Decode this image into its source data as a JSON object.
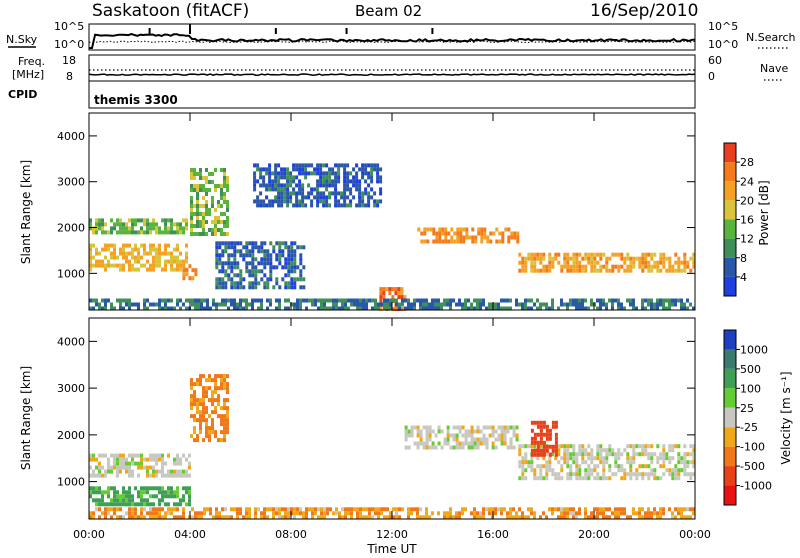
{
  "header": {
    "station": "Saskatoon (fitACF)",
    "beam": "Beam 02",
    "date": "16/Sep/2010"
  },
  "strip": {
    "nsky_label": "N.Sky",
    "nsearch_label": "N.Search",
    "left_ticks": [
      "10^5",
      "10^0"
    ],
    "right_ticks": [
      "10^5",
      "10^0"
    ],
    "freq_label": [
      "Freq.",
      "[MHz]"
    ],
    "freq_ticks": [
      "18",
      "8"
    ],
    "nave_label": "Nave",
    "nave_ticks": [
      "60",
      "0"
    ],
    "cpid_label": "CPID",
    "cpid_value": "themis 3300"
  },
  "axes": {
    "xlabel": "Time UT",
    "ylabel": "Slant Range [km]",
    "x_ticks": [
      "00:00",
      "04:00",
      "08:00",
      "12:00",
      "16:00",
      "20:00",
      "00:00"
    ],
    "y_ticks": [
      "1000",
      "2000",
      "3000",
      "4000"
    ]
  },
  "colorbars": {
    "power": {
      "label": "Power [dB]",
      "ticks": [
        "4",
        "8",
        "12",
        "16",
        "20",
        "24",
        "28"
      ],
      "colors": [
        "#1f3fe0",
        "#2a57a8",
        "#3f8f5a",
        "#58b43c",
        "#d9c43a",
        "#f5a123",
        "#f57a1c",
        "#e8401f"
      ]
    },
    "velocity": {
      "label": "Velocity [m s⁻¹]",
      "ticks": [
        "1000",
        "500",
        "100",
        "25",
        "-25",
        "-100",
        "-500",
        "-1000"
      ],
      "colors": [
        "#1e3fbf",
        "#3b7a6f",
        "#3fa055",
        "#66cc33",
        "#c8c8c0",
        "#f0a818",
        "#f07818",
        "#e84018",
        "#e81010"
      ]
    }
  },
  "chart_data": [
    {
      "type": "heatmap",
      "title": "Power",
      "x": "Time UT",
      "xlim": [
        "00:00",
        "24:00"
      ],
      "ylim": [
        200,
        4500
      ],
      "zlabel": "Power [dB]",
      "zlim": [
        0,
        32
      ],
      "regions": [
        {
          "t": [
            0.0,
            3.9
          ],
          "range": [
            1050,
            1650
          ],
          "power_db": 20
        },
        {
          "t": [
            0.0,
            3.9
          ],
          "range": [
            1900,
            2200
          ],
          "power_db": 14
        },
        {
          "t": [
            3.7,
            4.2
          ],
          "range": [
            900,
            1200
          ],
          "power_db": 24
        },
        {
          "t": [
            4.0,
            5.5
          ],
          "range": [
            1900,
            3300
          ],
          "power_db": 14
        },
        {
          "t": [
            5.0,
            8.5
          ],
          "range": [
            700,
            1700
          ],
          "power_db": 6
        },
        {
          "t": [
            6.5,
            11.5
          ],
          "range": [
            2500,
            3400
          ],
          "power_db": 6
        },
        {
          "t": [
            11.5,
            12.5
          ],
          "range": [
            200,
            700
          ],
          "power_db": 26
        },
        {
          "t": [
            13.0,
            17.0
          ],
          "range": [
            1700,
            2000
          ],
          "power_db": 24
        },
        {
          "t": [
            17.0,
            24.0
          ],
          "range": [
            1050,
            1450
          ],
          "power_db": 22
        },
        {
          "t": [
            0.0,
            24.0
          ],
          "range": [
            200,
            450
          ],
          "power_db": 8
        }
      ]
    },
    {
      "type": "heatmap",
      "title": "Velocity",
      "x": "Time UT",
      "xlim": [
        "00:00",
        "24:00"
      ],
      "ylim": [
        200,
        4500
      ],
      "zlabel": "Velocity [m s-1]",
      "zlim": [
        -1000,
        1000
      ],
      "regions": [
        {
          "t": [
            0.0,
            4.0
          ],
          "range": [
            1100,
            1600
          ],
          "velocity": 0
        },
        {
          "t": [
            0.0,
            4.0
          ],
          "range": [
            500,
            900
          ],
          "velocity": 80
        },
        {
          "t": [
            4.0,
            5.5
          ],
          "range": [
            1900,
            3300
          ],
          "velocity": -80
        },
        {
          "t": [
            12.5,
            17.0
          ],
          "range": [
            1700,
            2200
          ],
          "velocity": 0
        },
        {
          "t": [
            17.0,
            24.0
          ],
          "range": [
            1100,
            1800
          ],
          "velocity": 0
        },
        {
          "t": [
            17.5,
            18.5
          ],
          "range": [
            1600,
            2300
          ],
          "velocity": -500
        },
        {
          "t": [
            0.0,
            24.0
          ],
          "range": [
            200,
            450
          ],
          "velocity": -60
        }
      ]
    }
  ]
}
